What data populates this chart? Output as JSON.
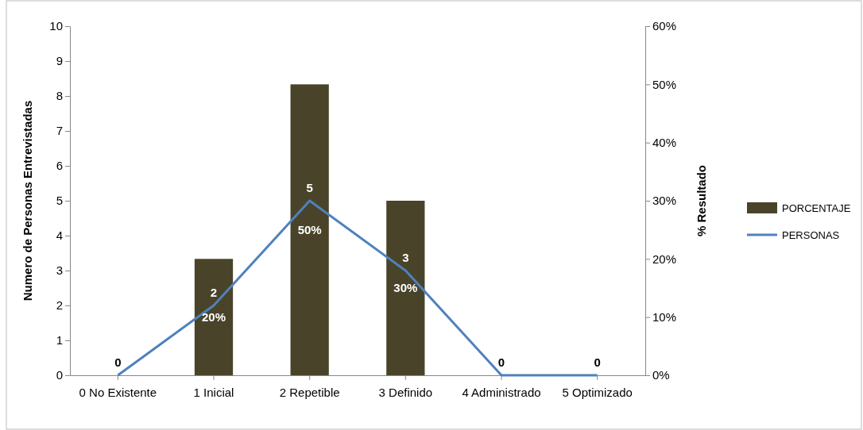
{
  "chart_data": {
    "type": "bar",
    "categories": [
      "0 No Existente",
      "1 Inicial",
      "2 Repetible",
      "3 Definido",
      "4 Administrado",
      "5 Optimizado"
    ],
    "ylabel": "Numero de Personas Entrevistadas",
    "y2label": "% Resultado",
    "ylim": [
      0,
      10
    ],
    "yticks": [
      0,
      1,
      2,
      3,
      4,
      5,
      6,
      7,
      8,
      9,
      10
    ],
    "y2lim": [
      0,
      60
    ],
    "y2ticks": [
      {
        "value": 0,
        "label": "0%"
      },
      {
        "value": 10,
        "label": "10%"
      },
      {
        "value": 20,
        "label": "20%"
      },
      {
        "value": 30,
        "label": "30%"
      },
      {
        "value": 40,
        "label": "40%"
      },
      {
        "value": 50,
        "label": "50%"
      },
      {
        "value": 60,
        "label": "60%"
      }
    ],
    "series": [
      {
        "name": "PORCENTAJE",
        "axis": "y2",
        "color": "#494429",
        "values": [
          0,
          20,
          50,
          30,
          0,
          0
        ],
        "value_labels": [
          null,
          "20%",
          "50%",
          "30%",
          null,
          null
        ]
      },
      {
        "name": "PERSONAS",
        "type": "line",
        "axis": "y",
        "color": "#4f81bd",
        "values": [
          0,
          2,
          5,
          3,
          0,
          0
        ],
        "value_labels": [
          "0",
          "2",
          "5",
          "3",
          "0",
          "0"
        ]
      }
    ],
    "legend": "right",
    "grid": false,
    "marker": "none",
    "line_style": "solid"
  }
}
